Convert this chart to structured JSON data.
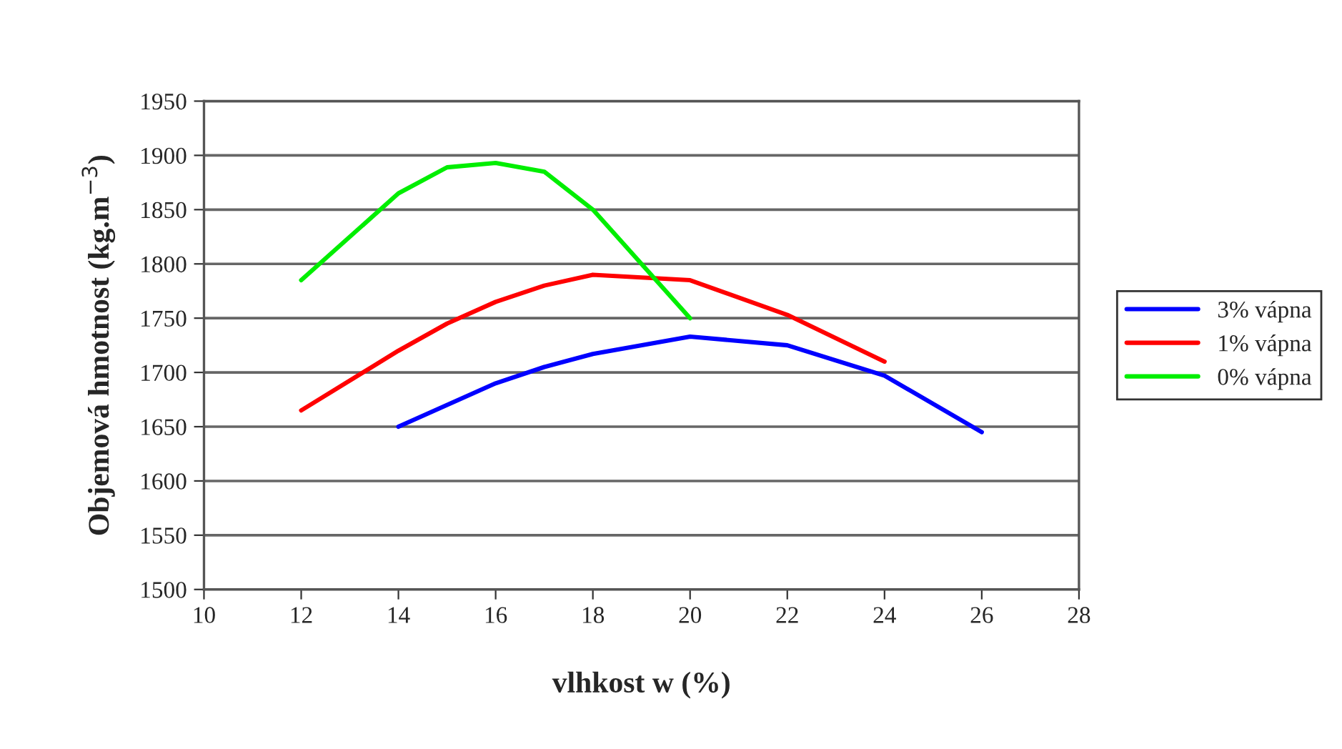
{
  "chart_data": {
    "type": "line",
    "xlabel": "vlhkost w (%)",
    "ylabel": "Objemová hmotnost (kg.m$^{−3}$)",
    "xlim": [
      10,
      28
    ],
    "xticks": [
      10,
      12,
      14,
      16,
      18,
      20,
      22,
      24,
      26,
      28
    ],
    "ylim": [
      1500,
      1950
    ],
    "yticks": [
      1500,
      1550,
      1600,
      1650,
      1700,
      1750,
      1800,
      1850,
      1900,
      1950
    ],
    "grid": "y",
    "legend": "right",
    "marker": "none",
    "line_style": "solid",
    "series": [
      {
        "name": "3% vápna",
        "color": "#0000ff",
        "x": [
          14,
          16,
          17,
          18,
          20,
          22,
          24,
          26
        ],
        "values": [
          1650,
          1690,
          1705,
          1717,
          1733,
          1725,
          1697,
          1645
        ]
      },
      {
        "name": "1% vápna",
        "color": "#ff0000",
        "x": [
          12,
          14,
          15,
          16,
          17,
          18,
          20,
          22,
          24
        ],
        "values": [
          1665,
          1720,
          1745,
          1765,
          1780,
          1790,
          1785,
          1753,
          1710
        ]
      },
      {
        "name": "0% vápna",
        "color": "#00ee00",
        "x": [
          12,
          14,
          15,
          16,
          17,
          18,
          20
        ],
        "values": [
          1785,
          1865,
          1889,
          1893,
          1885,
          1850,
          1750
        ]
      }
    ]
  }
}
